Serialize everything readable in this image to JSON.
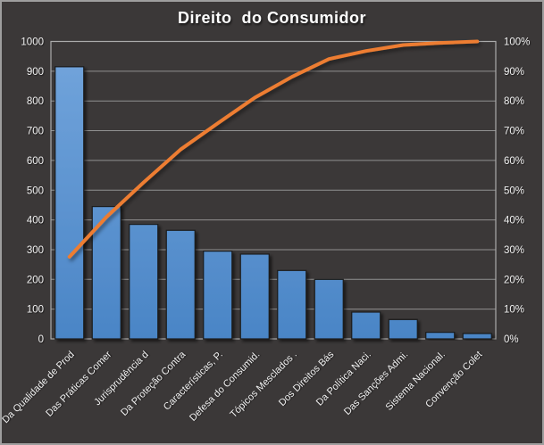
{
  "frame": {
    "background": "#3B3838",
    "border_color": "#9E9E9E"
  },
  "chart_data": {
    "type": "bar",
    "subtype": "pareto",
    "title": "Direito  do Consumidor",
    "title_color": "#FFFFFF",
    "categories": [
      "Da Qualidade de Prod",
      "Das Práticas Comer",
      "Jurisprudência d",
      "Da Proteção Contra",
      "Características, P.",
      "Defesa do Consumid.",
      "Tópicos Mesclados .",
      "Dos Direitos Bás",
      "Da Política Naci.",
      "Das Sanções Admi.",
      "Sistema Nacional.",
      "Convenção Colet"
    ],
    "series": [
      {
        "name": "frequency-bars",
        "type": "bar",
        "axis": "left",
        "values": [
          915,
          445,
          385,
          365,
          295,
          285,
          230,
          200,
          90,
          65,
          22,
          18
        ],
        "bar_color_top": "#73A5DC",
        "bar_color_bottom": "#4A85C6",
        "bar_border_color": "#1A1A1A"
      },
      {
        "name": "cumulative-percent-line",
        "type": "line",
        "axis": "right",
        "values": [
          27.6,
          41.0,
          52.6,
          63.7,
          72.5,
          81.1,
          88.1,
          94.1,
          96.8,
          98.8,
          99.5,
          100.0
        ],
        "color": "#ED7D31"
      }
    ],
    "left_axis": {
      "min": 0,
      "max": 1000,
      "step": 100,
      "tick_labels": [
        "0",
        "100",
        "200",
        "300",
        "400",
        "500",
        "600",
        "700",
        "800",
        "900",
        "1000"
      ]
    },
    "right_axis": {
      "min": 0,
      "max": 100,
      "step": 10,
      "tick_labels": [
        "0%",
        "10%",
        "20%",
        "30%",
        "40%",
        "50%",
        "60%",
        "70%",
        "80%",
        "90%",
        "100%"
      ]
    },
    "axis_label_color": "#F2F2F2",
    "grid": {
      "show": true,
      "color": "#A6A6A6"
    },
    "plot_border_color": "#ABABAB",
    "legend": "none"
  }
}
